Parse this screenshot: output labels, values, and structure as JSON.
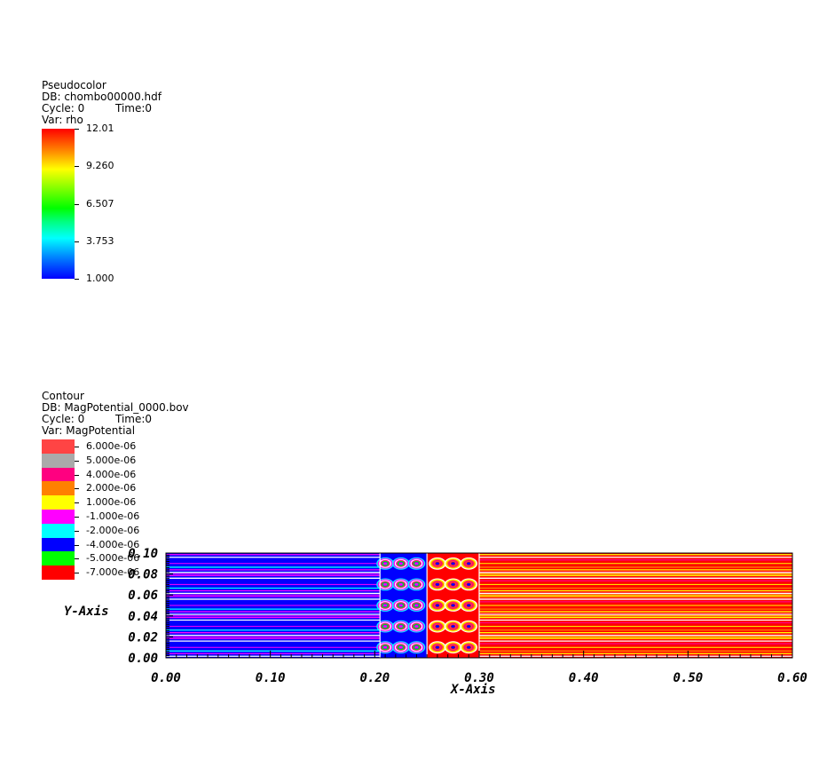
{
  "pseudocolor_legend": {
    "plot_type": "Pseudocolor",
    "db": "DB: chombo00000.hdf",
    "cycle": "Cycle: 0",
    "time": "Time:0",
    "var": "Var: rho",
    "ticks": [
      "12.01",
      "9.260",
      "6.507",
      "3.753",
      "1.000"
    ],
    "gradient_colors": [
      "#ff0000",
      "#ffff00",
      "#00ff00",
      "#00ffff",
      "#0000ff"
    ]
  },
  "contour_legend": {
    "plot_type": "Contour",
    "db": "DB: MagPotential_0000.bov",
    "cycle": "Cycle: 0",
    "time": "Time:0",
    "var": "Var: MagPotential",
    "levels": [
      {
        "label": "6.000e-06",
        "color": "#ff4444"
      },
      {
        "label": "5.000e-06",
        "color": "#aaaaaa"
      },
      {
        "label": "4.000e-06",
        "color": "#ff0080"
      },
      {
        "label": "2.000e-06",
        "color": "#ff8000"
      },
      {
        "label": "1.000e-06",
        "color": "#ffff00"
      },
      {
        "label": "-1.000e-06",
        "color": "#ff00ff"
      },
      {
        "label": "-2.000e-06",
        "color": "#00ffff"
      },
      {
        "label": "-4.000e-06",
        "color": "#0000ff"
      },
      {
        "label": "-5.000e-06",
        "color": "#00ff00"
      },
      {
        "label": "-7.000e-06",
        "color": "#ff0000"
      }
    ]
  },
  "chart_data": {
    "type": "heatmap",
    "xlabel": "X-Axis",
    "ylabel": "Y-Axis",
    "xlim": [
      0.0,
      0.6
    ],
    "ylim": [
      0.0,
      0.1
    ],
    "x_ticks": [
      "0.00",
      "0.10",
      "0.20",
      "0.30",
      "0.40",
      "0.50",
      "0.60"
    ],
    "y_ticks": [
      "0.00",
      "0.02",
      "0.04",
      "0.06",
      "0.08",
      "0.10"
    ],
    "regions": [
      {
        "x_range": [
          0.0,
          0.205
        ],
        "color": "#0000ff"
      },
      {
        "x_range": [
          0.205,
          0.25
        ],
        "color": "#0000ff"
      },
      {
        "x_range": [
          0.25,
          0.3
        ],
        "color": "#ff0000"
      },
      {
        "x_range": [
          0.3,
          0.6
        ],
        "color": "#ff0000"
      }
    ],
    "blob_rows_y": [
      0.01,
      0.03,
      0.05,
      0.07,
      0.09
    ],
    "blob_cols_x": [
      0.21,
      0.225,
      0.24,
      0.26,
      0.275,
      0.29
    ]
  }
}
